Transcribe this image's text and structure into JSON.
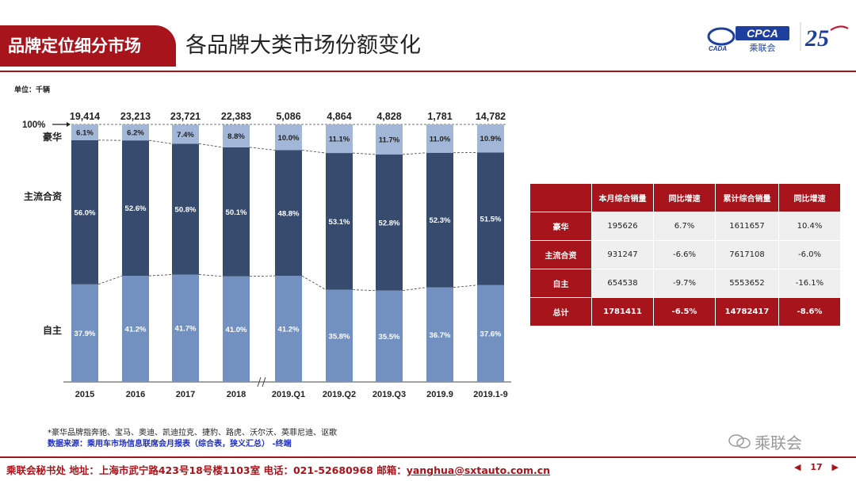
{
  "header": {
    "section_title": "品牌定位细分市场",
    "page_title": "各品牌大类市场份额变化",
    "logo_text": "CPCA",
    "logo_subtext": "乘联会",
    "logo_abbr": "CADA",
    "anniversary_text": "25"
  },
  "unit_label": "单位：千辆",
  "chart_data": {
    "type": "bar",
    "stacked": "percent",
    "categories": [
      "2015",
      "2016",
      "2017",
      "2018",
      "2019.Q1",
      "2019.Q2",
      "2019.Q3",
      "2019.9",
      "2019.1-9"
    ],
    "totals": [
      "19,414",
      "23,213",
      "23,721",
      "22,383",
      "5,086",
      "4,864",
      "4,828",
      "1,781",
      "14,782"
    ],
    "series": [
      {
        "name": "自主",
        "values": [
          37.9,
          41.2,
          41.7,
          41.0,
          41.2,
          35.8,
          35.5,
          36.7,
          37.6
        ],
        "labels": [
          "37.9%",
          "41.2%",
          "41.7%",
          "41.0%",
          "41.2%",
          "35.8%",
          "35.5%",
          "36.7%",
          "37.6%"
        ],
        "color": "#7391c0"
      },
      {
        "name": "主流合资",
        "values": [
          56.0,
          52.6,
          50.8,
          50.1,
          48.8,
          53.1,
          52.8,
          52.3,
          51.5
        ],
        "labels": [
          "56.0%",
          "52.6%",
          "50.8%",
          "50.1%",
          "48.8%",
          "53.1%",
          "52.8%",
          "52.3%",
          "51.5%"
        ],
        "color": "#364b6e"
      },
      {
        "name": "豪华",
        "values": [
          6.1,
          6.2,
          7.4,
          8.8,
          10.0,
          11.1,
          11.7,
          11.0,
          10.9
        ],
        "labels": [
          "6.1%",
          "6.2%",
          "7.4%",
          "8.8%",
          "10.0%",
          "11.1%",
          "11.7%",
          "11.0%",
          "10.9%"
        ],
        "color": "#a2b7d8"
      }
    ],
    "hundred_label": "100%",
    "ylim": [
      0,
      100
    ],
    "axis_break_after": "2018"
  },
  "table": {
    "headers": [
      "",
      "本月综合销量",
      "同比增速",
      "累计综合销量",
      "同比增速"
    ],
    "rows": [
      {
        "label": "豪华",
        "cells": [
          "195626",
          "6.7%",
          "1611657",
          "10.4%"
        ]
      },
      {
        "label": "主流合资",
        "cells": [
          "931247",
          "-6.6%",
          "7617108",
          "-6.0%"
        ]
      },
      {
        "label": "自主",
        "cells": [
          "654538",
          "-9.7%",
          "5553652",
          "-16.1%"
        ]
      }
    ],
    "total": {
      "label": "总计",
      "cells": [
        "1781411",
        "-6.5%",
        "14782417",
        "-8.6%"
      ]
    }
  },
  "notes": {
    "luxury_note": "*豪华品牌指奔驰、宝马、奥迪、凯迪拉克、捷豹、路虎、沃尔沃、英菲尼迪、讴歌",
    "source": "数据来源：乘用车市场信息联席会月报表（综合表，狭义汇总） -终端"
  },
  "watermark": "乘联会",
  "footer": {
    "text": "乘联会秘书处   地址：上海市武宁路423号18号楼1103室  电话：021-52680968   邮箱：",
    "email": "yanghua@sxtauto.com.cn"
  },
  "pager": {
    "prev": "◀",
    "page": "17",
    "next": "▶"
  },
  "colors": {
    "brand_red": "#a8141b",
    "self_brand": "#7391c0",
    "jv": "#364b6e",
    "luxury": "#a2b7d8"
  }
}
